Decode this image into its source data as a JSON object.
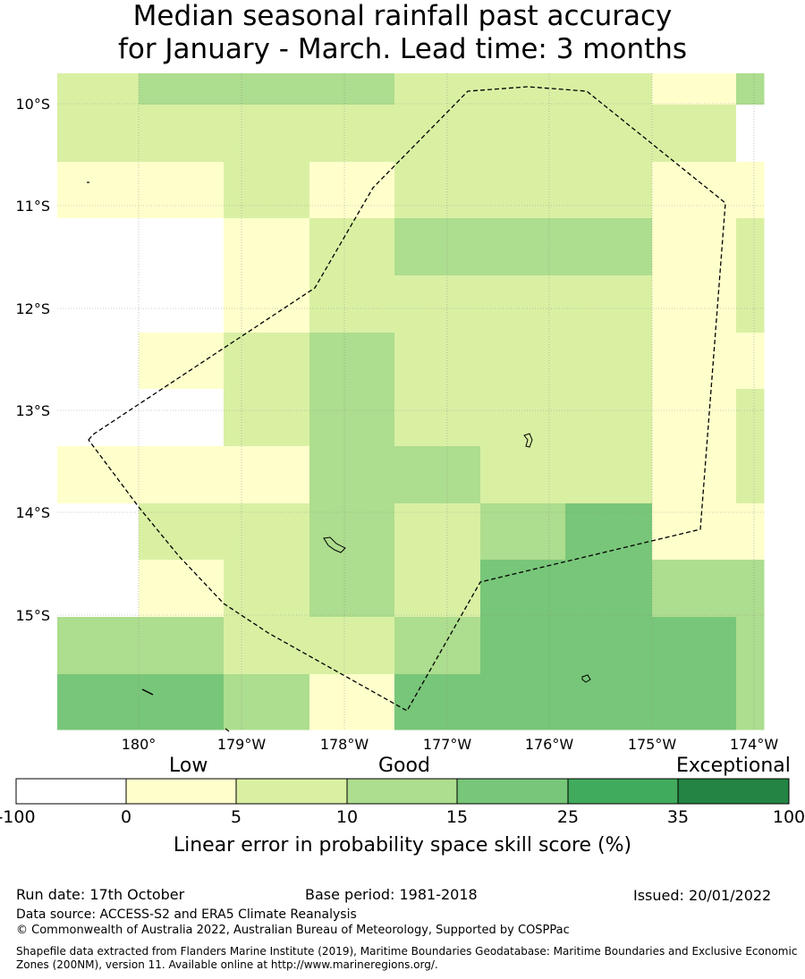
{
  "title": {
    "line1": "Median seasonal rainfall past accuracy",
    "line2": "for January - March. Lead time: 3 months"
  },
  "map": {
    "lat_labels": [
      "10°S",
      "11°S",
      "12°S",
      "13°S",
      "14°S",
      "15°S"
    ],
    "lon_labels": [
      "180°",
      "179°W",
      "178°W",
      "177°W",
      "176°W",
      "175°W",
      "174°W"
    ],
    "category_colors": {
      "w": "#ffffff",
      "y": "#ffffcc",
      "l": "#d9f0a3",
      "m": "#addd8e",
      "g": "#78c679",
      "G": "#41ab5d",
      "D": "#238443"
    },
    "grid_rows": [
      [
        "l",
        "m",
        "m",
        "m",
        "l",
        "l",
        "l",
        "l",
        "m",
        "y",
        "m"
      ],
      [
        "l",
        "l",
        "l",
        "l",
        "l",
        "l",
        "l",
        "l",
        "l",
        "l",
        "w"
      ],
      [
        "y",
        "y",
        "l",
        "y",
        "l",
        "l",
        "l",
        "l",
        "y",
        "y",
        "y"
      ],
      [
        "w",
        "w",
        "y",
        "l",
        "m",
        "m",
        "m",
        "l",
        "y",
        "y",
        "l"
      ],
      [
        "w",
        "w",
        "y",
        "l",
        "l",
        "l",
        "l",
        "y",
        "y",
        "y",
        "l"
      ],
      [
        "w",
        "y",
        "l",
        "m",
        "l",
        "l",
        "l",
        "y",
        "w",
        "y",
        "y"
      ],
      [
        "w",
        "w",
        "l",
        "m",
        "l",
        "l",
        "l",
        "w",
        "y",
        "y",
        "l"
      ],
      [
        "y",
        "y",
        "y",
        "m",
        "m",
        "l",
        "l",
        "l",
        "y",
        "y",
        "l"
      ],
      [
        "w",
        "l",
        "l",
        "m",
        "l",
        "m",
        "g",
        "g",
        "y",
        "y",
        "y"
      ],
      [
        "w",
        "y",
        "l",
        "m",
        "l",
        "g",
        "g",
        "g",
        "m",
        "m",
        "m"
      ],
      [
        "m",
        "m",
        "l",
        "l",
        "m",
        "g",
        "g",
        "g",
        "g",
        "g",
        "m"
      ],
      [
        "g",
        "g",
        "m",
        "y",
        "g",
        "g",
        "g",
        "g",
        "g",
        "g",
        "m"
      ]
    ]
  },
  "colorbar": {
    "words": {
      "low": "Low",
      "good": "Good",
      "exceptional": "Exceptional"
    },
    "ticks": [
      "-100",
      "0",
      "5",
      "10",
      "15",
      "25",
      "35",
      "100"
    ],
    "colors": [
      "#ffffff",
      "#ffffcc",
      "#d9f0a3",
      "#addd8e",
      "#78c679",
      "#41ab5d",
      "#238443"
    ],
    "label": "Linear error in probability space skill score (%)"
  },
  "footer": {
    "run_date": "Run date: 17th October",
    "base_period": "Base period: 1981-2018",
    "issued": "Issued: 20/01/2022",
    "data_source": "Data source: ACCESS-S2 and ERA5 Climate Reanalysis",
    "copyright": "© Commonwealth of Australia 2022, Australian Bureau of Meteorology, Supported by COSPPac",
    "shapefile": "Shapefile data extracted from Flanders Marine Institute (2019), Maritime Boundaries Geodatabase: Maritime Boundaries and Exclusive Economic Zones (200NM), version 11. Available online at http://www.marineregions.org/."
  }
}
